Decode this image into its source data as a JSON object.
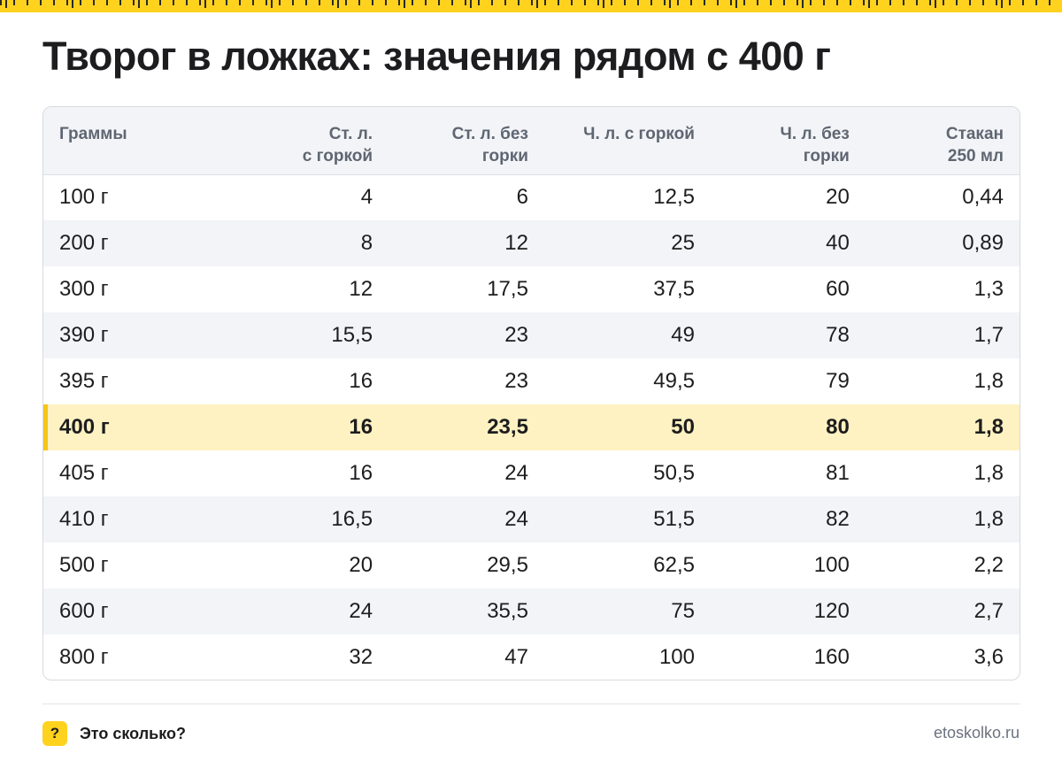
{
  "title": "Творог в ложках: значения рядом с 400 г",
  "colors": {
    "accent": "#ffd21e",
    "highlight_row": "#fff2c2",
    "header_bg": "#f2f4f7"
  },
  "table": {
    "headers": [
      "Граммы",
      "Ст. л.\nс горкой",
      "Ст. л. без\nгорки",
      "Ч. л. с горкой",
      "Ч. л. без\nгорки",
      "Стакан\n250 мл"
    ],
    "highlight_index": 5,
    "rows": [
      [
        "100 г",
        "4",
        "6",
        "12,5",
        "20",
        "0,44"
      ],
      [
        "200 г",
        "8",
        "12",
        "25",
        "40",
        "0,89"
      ],
      [
        "300 г",
        "12",
        "17,5",
        "37,5",
        "60",
        "1,3"
      ],
      [
        "390 г",
        "15,5",
        "23",
        "49",
        "78",
        "1,7"
      ],
      [
        "395 г",
        "16",
        "23",
        "49,5",
        "79",
        "1,8"
      ],
      [
        "400 г",
        "16",
        "23,5",
        "50",
        "80",
        "1,8"
      ],
      [
        "405 г",
        "16",
        "24",
        "50,5",
        "81",
        "1,8"
      ],
      [
        "410 г",
        "16,5",
        "24",
        "51,5",
        "82",
        "1,8"
      ],
      [
        "500 г",
        "20",
        "29,5",
        "62,5",
        "100",
        "2,2"
      ],
      [
        "600 г",
        "24",
        "35,5",
        "75",
        "120",
        "2,7"
      ],
      [
        "800 г",
        "32",
        "47",
        "100",
        "160",
        "3,6"
      ]
    ]
  },
  "footer": {
    "badge": "?",
    "brand": "Это сколько?",
    "site": "etoskolko.ru",
    "badge_icon": "question-icon"
  }
}
